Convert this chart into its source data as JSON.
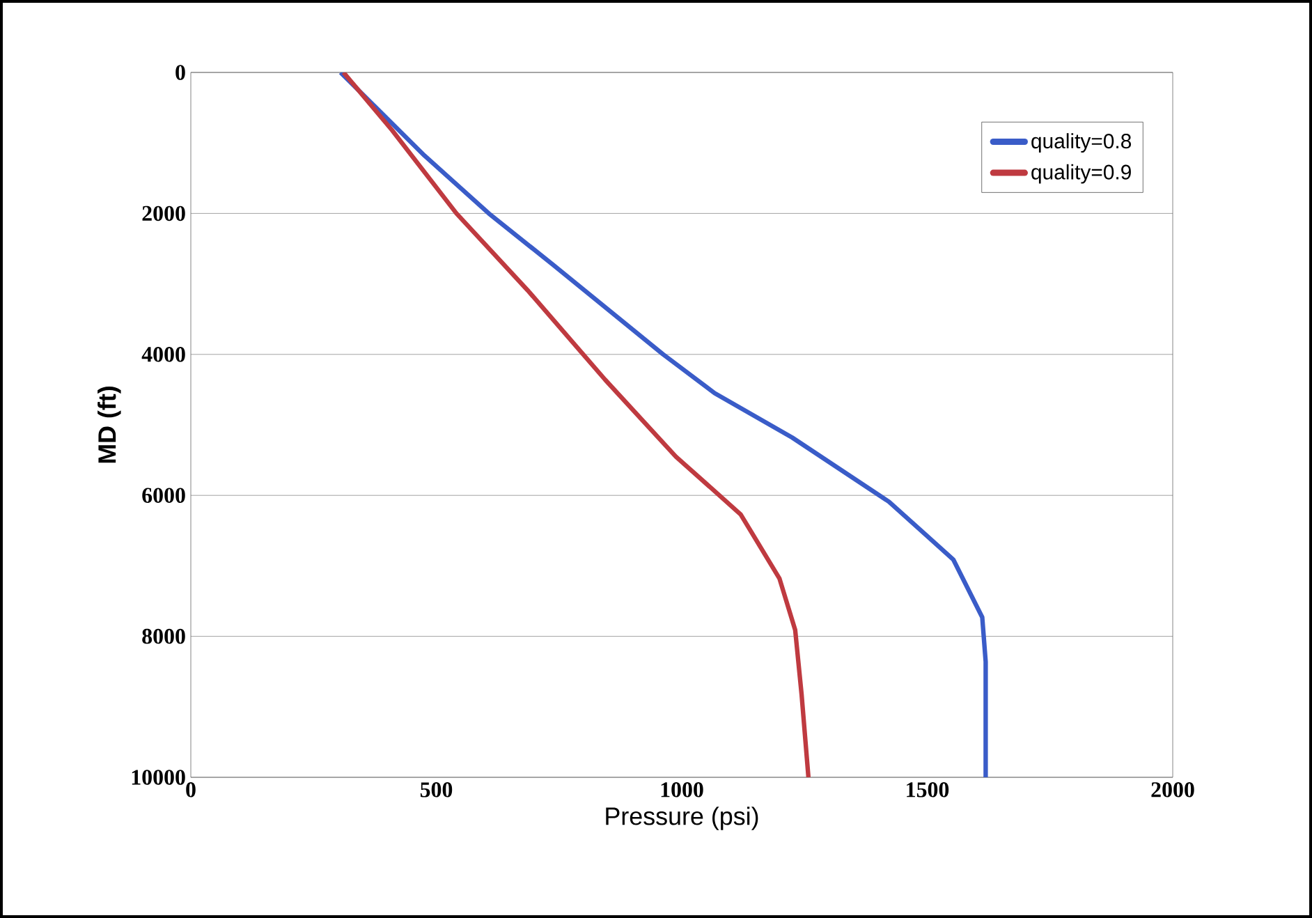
{
  "chart_data": {
    "type": "line",
    "xlabel": "Pressure (psi)",
    "ylabel": "MD (ft)",
    "xlim": [
      0,
      2000
    ],
    "xticks": [
      0,
      500,
      1000,
      1500,
      2000
    ],
    "ylim": [
      10000,
      0
    ],
    "yticks": [
      0,
      2000,
      4000,
      6000,
      8000,
      10000
    ],
    "grid": "y",
    "legend": "top right",
    "line_style": "solid",
    "series": [
      {
        "name": "quality=0.8",
        "color": "#3a5cc8",
        "x": [
          305,
          476,
          607,
          738,
          962,
          1067,
          1225,
          1422,
          1553,
          1612,
          1619,
          1619
        ],
        "values": [
          0,
          1180,
          2000,
          2730,
          4000,
          4550,
          5180,
          6090,
          6910,
          7730,
          8360,
          10000
        ]
      },
      {
        "name": "quality=0.9",
        "color": "#bf3a40",
        "x": [
          311,
          410,
          541,
          686,
          844,
          988,
          1120,
          1199,
          1231,
          1244,
          1258
        ],
        "values": [
          0,
          820,
          2000,
          3090,
          4360,
          5450,
          6270,
          7180,
          7910,
          8820,
          10000
        ]
      }
    ]
  }
}
